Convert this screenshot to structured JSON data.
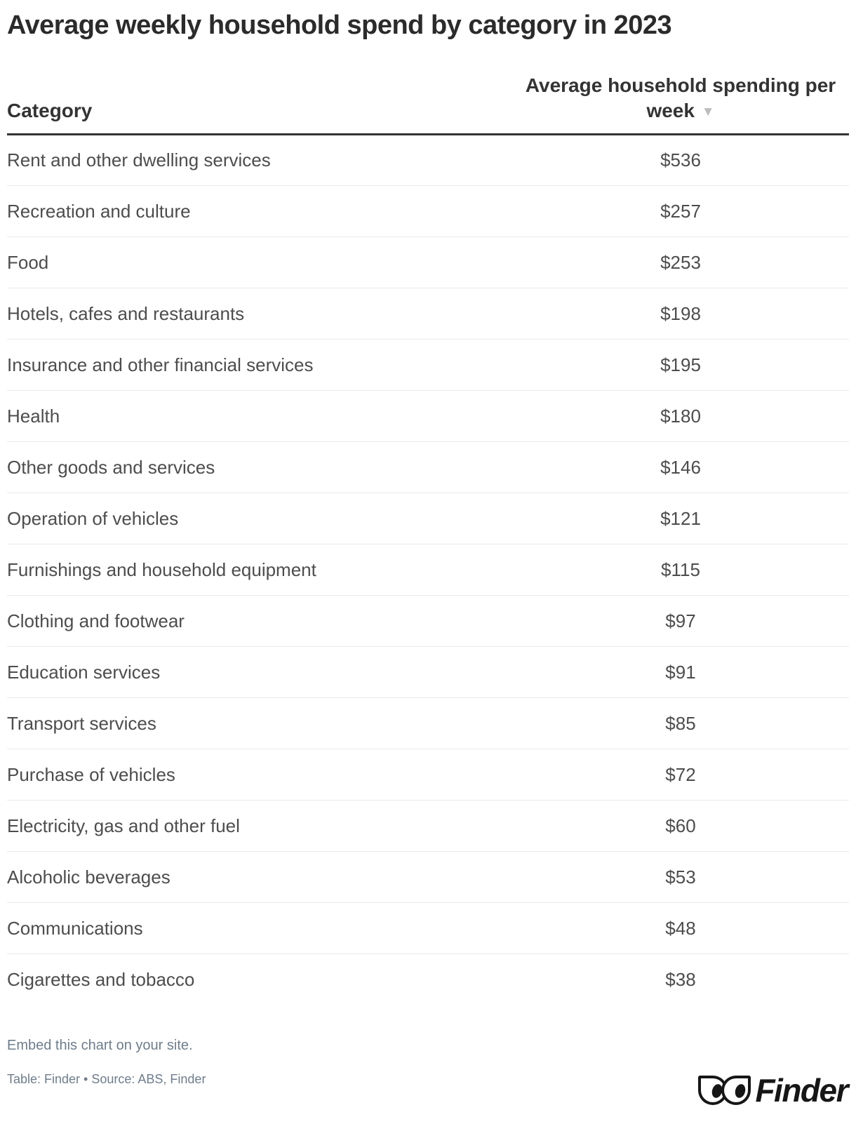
{
  "title": "Average weekly household spend by category in 2023",
  "table": {
    "columns": [
      {
        "label": "Category",
        "align": "left"
      },
      {
        "label": "Average household spending per week",
        "align": "center",
        "sort_icon": "▼",
        "sort": "descending"
      }
    ],
    "rows": [
      {
        "category": "Rent and other dwelling services",
        "value": "$536"
      },
      {
        "category": "Recreation and culture",
        "value": "$257"
      },
      {
        "category": "Food",
        "value": "$253"
      },
      {
        "category": "Hotels, cafes and restaurants",
        "value": "$198"
      },
      {
        "category": "Insurance and other financial services",
        "value": "$195"
      },
      {
        "category": "Health",
        "value": "$180"
      },
      {
        "category": "Other goods and services",
        "value": "$146"
      },
      {
        "category": "Operation of vehicles",
        "value": "$121"
      },
      {
        "category": "Furnishings and household equipment",
        "value": "$115"
      },
      {
        "category": "Clothing and footwear",
        "value": "$97"
      },
      {
        "category": "Education services",
        "value": "$91"
      },
      {
        "category": "Transport services",
        "value": "$85"
      },
      {
        "category": "Purchase of vehicles",
        "value": "$72"
      },
      {
        "category": "Electricity, gas and other fuel",
        "value": "$60"
      },
      {
        "category": "Alcoholic beverages",
        "value": "$53"
      },
      {
        "category": "Communications",
        "value": "$48"
      },
      {
        "category": "Cigarettes and tobacco",
        "value": "$38"
      }
    ]
  },
  "footer": {
    "embed_label": "Embed this chart on your site.",
    "attribution": "Table: Finder • Source: ABS, Finder",
    "logo_text": "Finder"
  },
  "colors": {
    "title": "#2b2b2b",
    "header_text": "#333333",
    "header_rule": "#333333",
    "row_divider": "#e9e9e9",
    "cell_text": "#4d4d4d",
    "sort_icon": "#bdbdbd",
    "footer_text": "#6e7d8c",
    "logo": "#161616",
    "background": "#ffffff"
  },
  "chart_data": {
    "type": "table",
    "title": "Average weekly household spend by category in 2023",
    "columns": [
      "Category",
      "Average household spending per week"
    ],
    "categories": [
      "Rent and other dwelling services",
      "Recreation and culture",
      "Food",
      "Hotels, cafes and restaurants",
      "Insurance and other financial services",
      "Health",
      "Other goods and services",
      "Operation of vehicles",
      "Furnishings and household equipment",
      "Clothing and footwear",
      "Education services",
      "Transport services",
      "Purchase of vehicles",
      "Electricity, gas and other fuel",
      "Alcoholic beverages",
      "Communications",
      "Cigarettes and tobacco"
    ],
    "values": [
      536,
      257,
      253,
      198,
      195,
      180,
      146,
      121,
      115,
      97,
      91,
      85,
      72,
      60,
      53,
      48,
      38
    ],
    "unit": "$ per week",
    "sort_order": "descending"
  }
}
